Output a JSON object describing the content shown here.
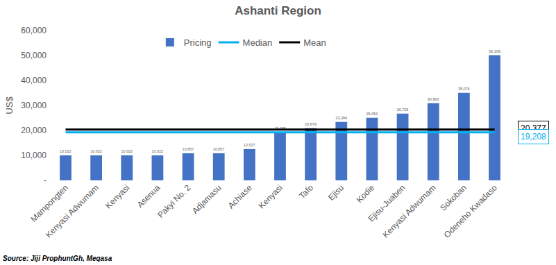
{
  "chart_data": {
    "type": "bar",
    "title": "Ashanti Region",
    "y_label": "US$",
    "source": "Source: Jiji ProphuntGh, Meqasa",
    "categories": [
      "Mampongten",
      "Kenyasi Adwumam",
      "Kenyasi",
      "Asenua",
      "Pakyi No. 2",
      "Adjamasu",
      "Achiase",
      "Kenyasi",
      "Tafo",
      "Ejisu",
      "Kodie",
      "Ejisu-Juaben",
      "Kenyasi Adwumam",
      "Sokoban",
      "Odeneho Kwadaso"
    ],
    "series": [
      {
        "name": "Pricing",
        "type": "bar",
        "color": "#4472c4",
        "values": [
          10022,
          10022,
          10022,
          10022,
          10857,
          10857,
          12527,
          19208,
          20879,
          23384,
          25054,
          26725,
          30900,
          35076,
          50109
        ],
        "value_labels": [
          "10,022",
          "10,022",
          "10,022",
          "10,022",
          "10,857",
          "10,857",
          "12,527",
          "19,208",
          "20,879",
          "23,384",
          "25,054",
          "26,725",
          "30,900",
          "35,076",
          "50,109"
        ]
      },
      {
        "name": "Median",
        "type": "line",
        "color": "#00b0f0",
        "values": [
          19208,
          19208,
          19208,
          19208,
          19208,
          19208,
          19208,
          19208,
          19208,
          19208,
          19208,
          19208,
          19208,
          19208,
          19208
        ]
      },
      {
        "name": "Mean",
        "type": "line",
        "color": "#000000",
        "values": [
          20377,
          20377,
          20377,
          20377,
          20377,
          20377,
          20377,
          20377,
          20377,
          20377,
          20377,
          20377,
          20377,
          20377,
          20377
        ]
      }
    ],
    "annotations": [
      {
        "text": "20,377",
        "y": 20377
      },
      {
        "text": "19,208",
        "y": 19208
      }
    ],
    "ylim": [
      0,
      60000
    ],
    "yticks": [
      {
        "value": 0,
        "label": "-"
      },
      {
        "value": 10000,
        "label": "10,000"
      },
      {
        "value": 20000,
        "label": "20,000"
      },
      {
        "value": 30000,
        "label": "30,000"
      },
      {
        "value": 40000,
        "label": "40,000"
      },
      {
        "value": 50000,
        "label": "50,000"
      },
      {
        "value": 60000,
        "label": "60,000"
      }
    ],
    "grid": false,
    "legend": "top",
    "data_labels": true
  }
}
